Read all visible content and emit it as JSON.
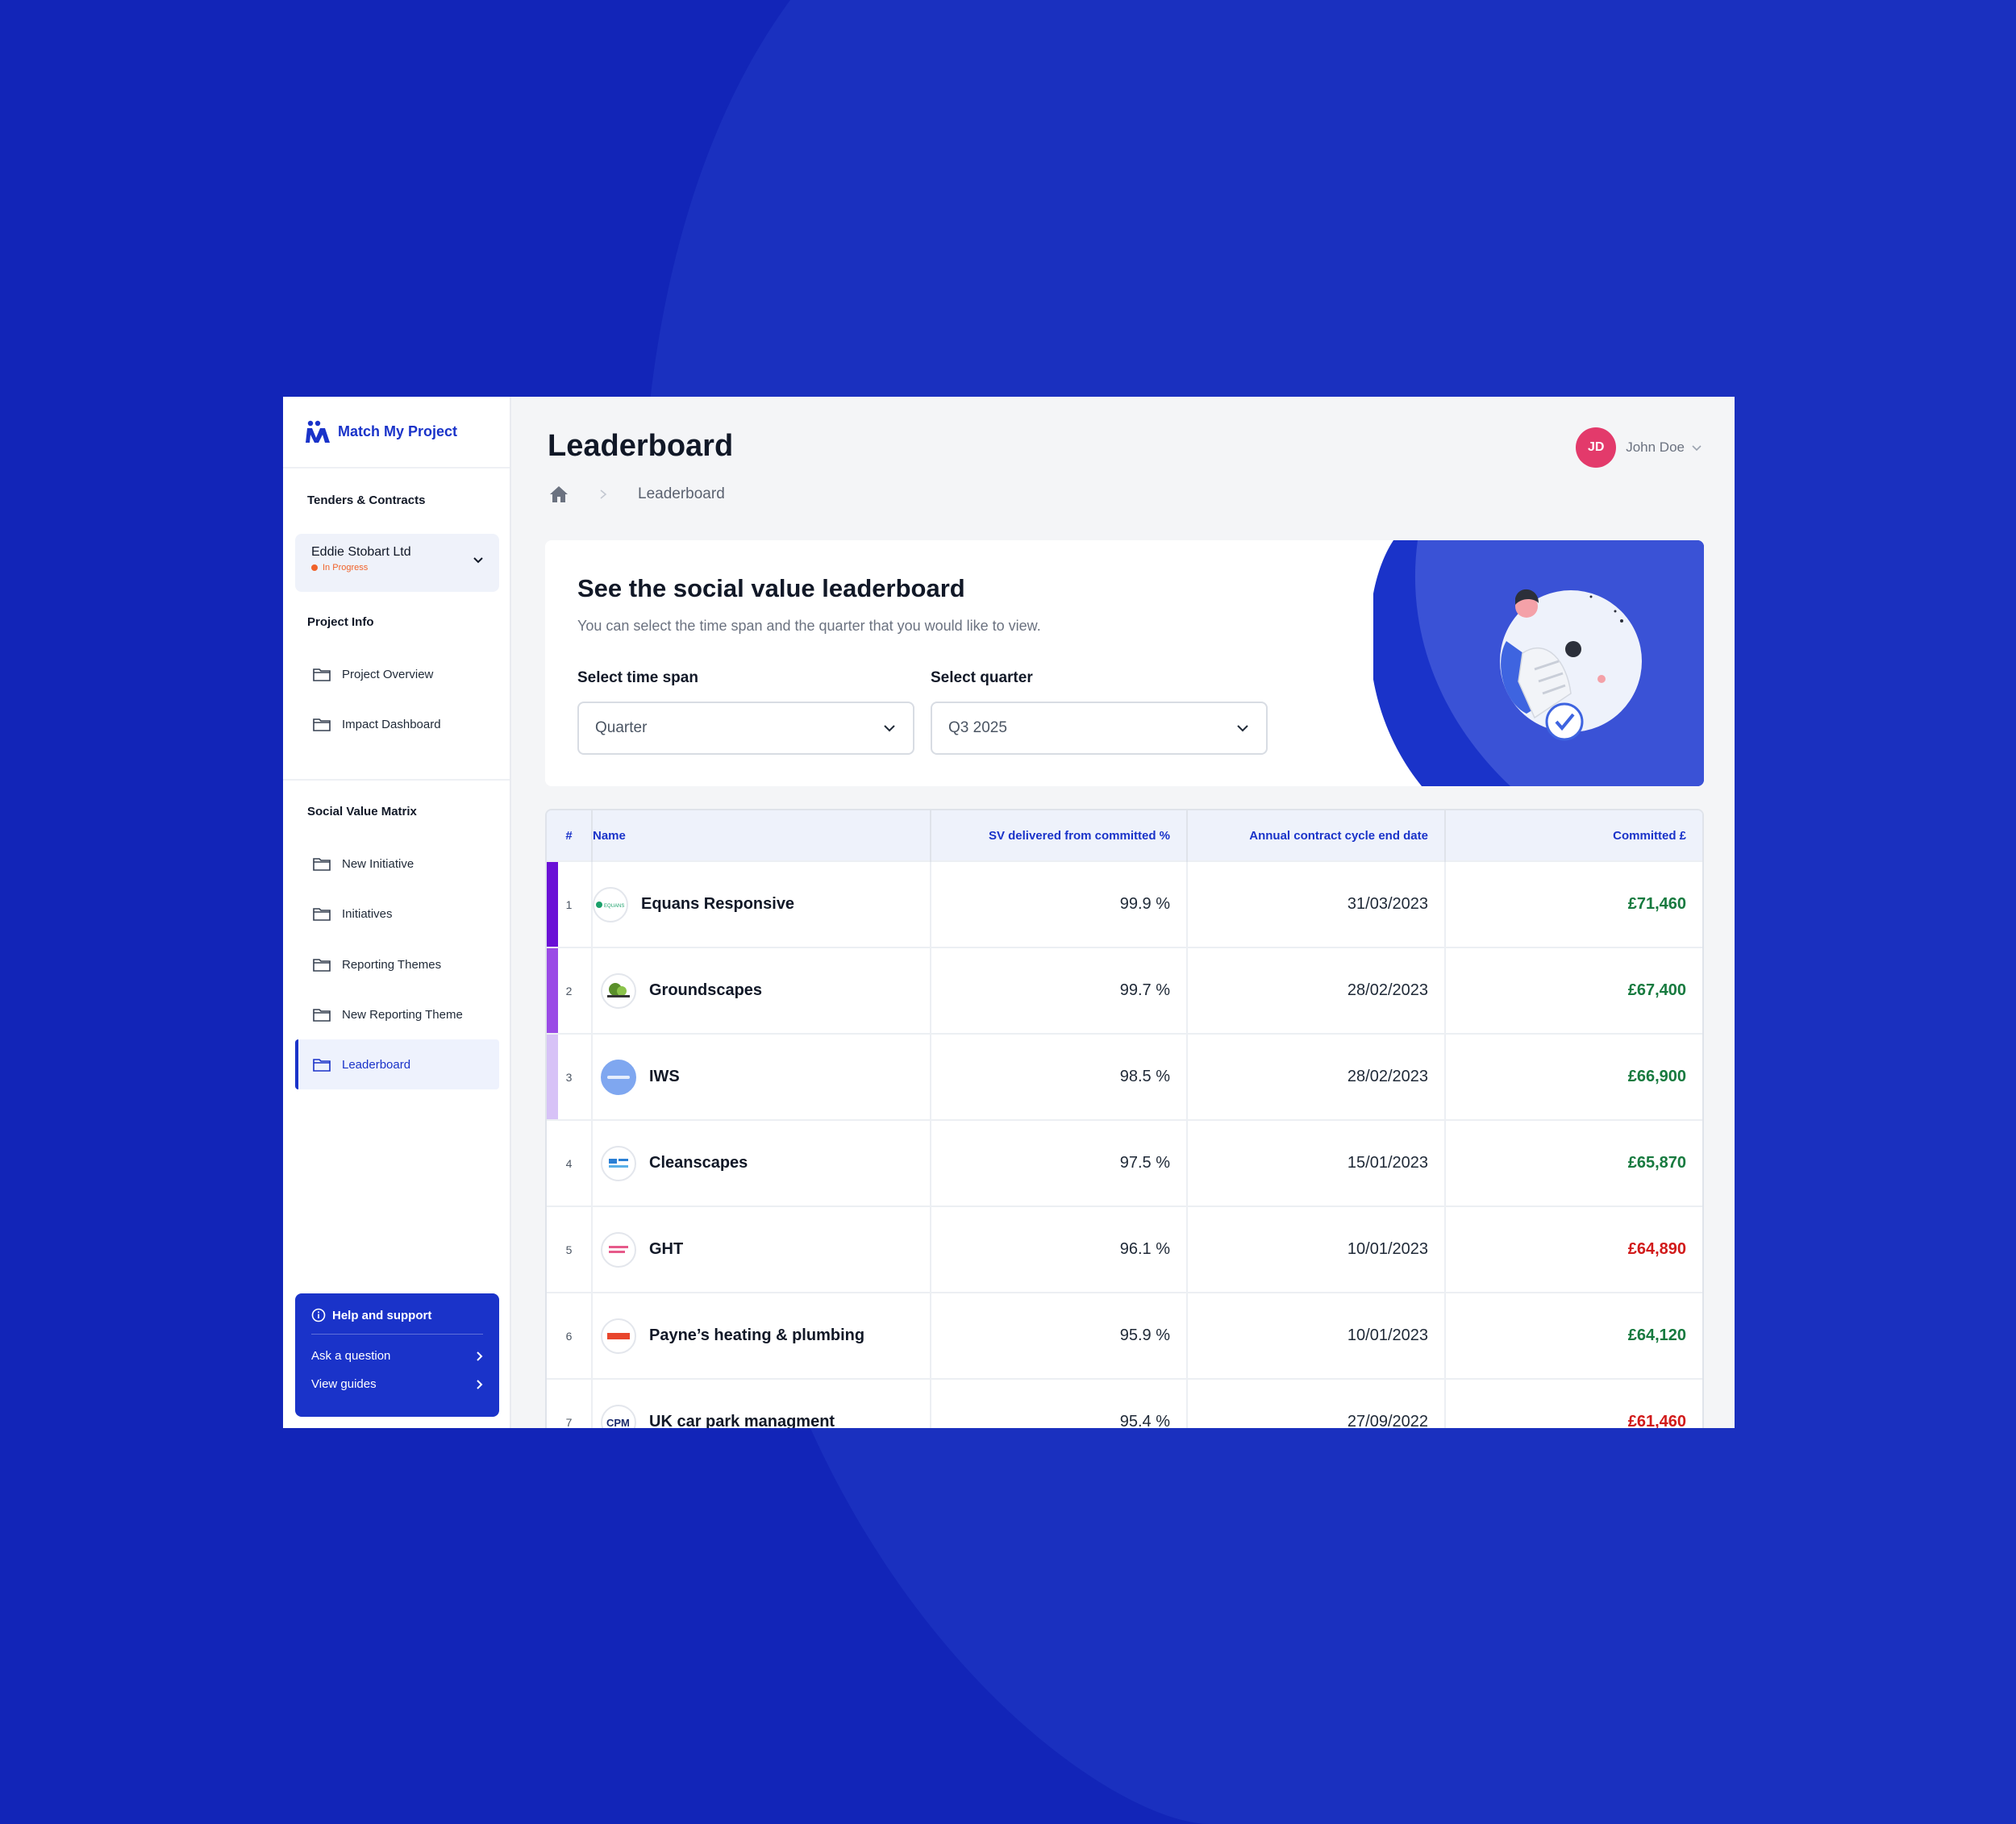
{
  "brand": {
    "name": "Match My Project",
    "accent": "#1a33c9"
  },
  "sidebar": {
    "sections": {
      "tenders": "Tenders & Contracts",
      "project_info": "Project Info",
      "svm": "Social Value Matrix"
    },
    "project": {
      "name": "Eddie Stobart Ltd",
      "status": "In Progress",
      "status_color": "#f0622a"
    },
    "project_items": [
      {
        "label": "Project Overview",
        "icon": "folder-icon"
      },
      {
        "label": "Impact Dashboard",
        "icon": "folder-icon"
      }
    ],
    "svm_items": [
      {
        "label": "New Initiative",
        "icon": "folder-icon"
      },
      {
        "label": "Initiatives",
        "icon": "folder-icon"
      },
      {
        "label": "Reporting Themes",
        "icon": "folder-icon"
      },
      {
        "label": "New Reporting Theme",
        "icon": "folder-icon"
      },
      {
        "label": "Leaderboard",
        "icon": "folder-icon",
        "active": true
      }
    ],
    "help": {
      "title": "Help and support",
      "links": [
        "Ask a question",
        "View guides"
      ]
    }
  },
  "header": {
    "title": "Leaderboard",
    "breadcrumb": [
      "home-icon",
      "Leaderboard"
    ],
    "user": {
      "initials": "JD",
      "name": "John Doe",
      "avatar_color": "#e33a6b"
    }
  },
  "hero": {
    "title": "See the social value leaderboard",
    "subtitle": "You can select the time span and the quarter that you would like to view.",
    "time_span": {
      "label": "Select time span",
      "value": "Quarter"
    },
    "quarter": {
      "label": "Select quarter",
      "value": "Q3 2025"
    }
  },
  "table": {
    "columns": [
      "#",
      "Name",
      "SV delivered from committed %",
      "Annual contract cycle end date",
      "Committed £"
    ],
    "rows": [
      {
        "rank": "1",
        "name": "Equans Responsive",
        "pct": "99.9 %",
        "date": "31/03/2023",
        "committed": "£71,460",
        "status": "green",
        "logo": "EQUANS"
      },
      {
        "rank": "2",
        "name": "Groundscapes",
        "pct": "99.7 %",
        "date": "28/02/2023",
        "committed": "£67,400",
        "status": "green",
        "logo": "GROUNDSCAPES"
      },
      {
        "rank": "3",
        "name": "IWS",
        "pct": "98.5 %",
        "date": "28/02/2023",
        "committed": "£66,900",
        "status": "green",
        "logo": "IWS"
      },
      {
        "rank": "4",
        "name": "Cleanscapes",
        "pct": "97.5 %",
        "date": "15/01/2023",
        "committed": "£65,870",
        "status": "green",
        "logo": "CLEANSCAPES"
      },
      {
        "rank": "5",
        "name": "GHT",
        "pct": "96.1 %",
        "date": "10/01/2023",
        "committed": "£64,890",
        "status": "red",
        "logo": "GHT"
      },
      {
        "rank": "6",
        "name": "Payne’s heating & plumbing",
        "pct": "95.9 %",
        "date": "10/01/2023",
        "committed": "£64,120",
        "status": "green",
        "logo": "PAYNES"
      },
      {
        "rank": "7",
        "name": "UK car park managment",
        "pct": "95.4 %",
        "date": "27/09/2022",
        "committed": "£61,460",
        "status": "red",
        "logo": "CPM"
      }
    ]
  }
}
